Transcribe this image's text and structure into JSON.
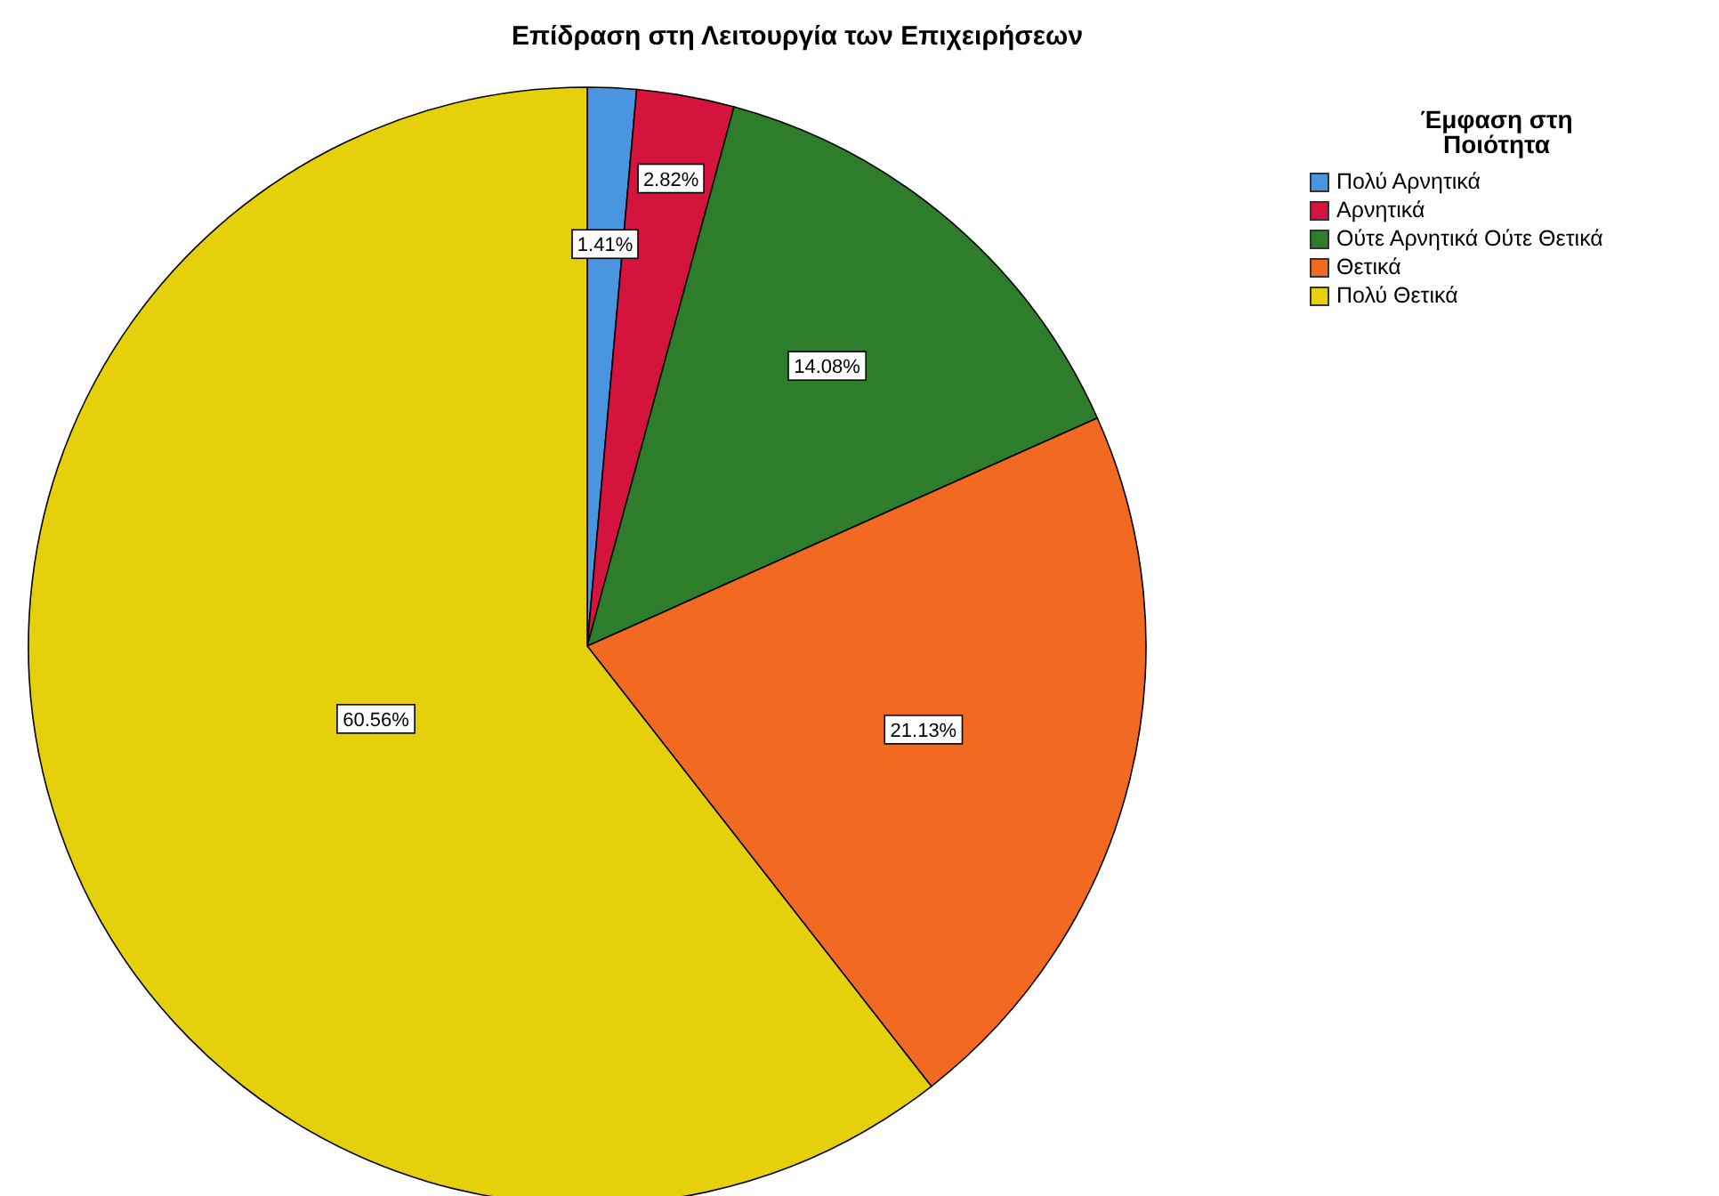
{
  "chart_data": {
    "type": "pie",
    "title": "Επίδραση στη Λειτουργία των Επιχειρήσεων",
    "legend_title": "Έμφαση στη Ποιότητα",
    "legend": "top right",
    "categories": [
      "Πολύ Αρνητικά",
      "Αρνητικά",
      "Ούτε Αρνητικά Ούτε Θετικά",
      "Θετικά",
      "Πολύ Θετικά"
    ],
    "values": [
      1.41,
      2.82,
      14.08,
      21.13,
      60.56
    ],
    "value_labels": [
      "1.41%",
      "2.82%",
      "14.08%",
      "21.13%",
      "60.56%"
    ],
    "colors": [
      "#4a95e0",
      "#d4143c",
      "#2e7d2a",
      "#f26a22",
      "#e6d00c"
    ]
  }
}
